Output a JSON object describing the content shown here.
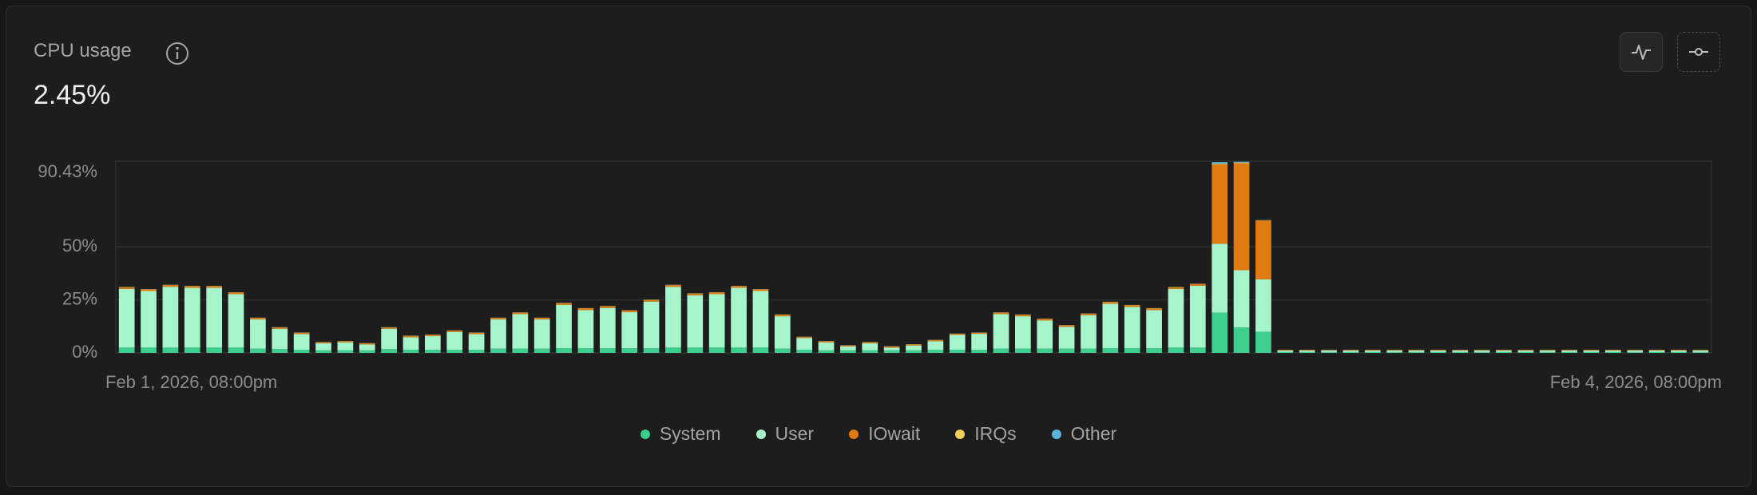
{
  "header": {
    "title": "CPU usage",
    "value": "2.45%"
  },
  "chart_data": {
    "type": "stacked_bar",
    "categories": [
      "Feb 1, 2026, 08:00pm",
      null,
      null,
      null,
      null,
      null,
      null,
      null,
      null,
      null,
      null,
      null,
      null,
      null,
      null,
      null,
      null,
      null,
      null,
      null,
      null,
      null,
      null,
      null,
      null,
      null,
      null,
      null,
      null,
      null,
      null,
      null,
      null,
      null,
      null,
      null,
      null,
      null,
      null,
      null,
      null,
      null,
      null,
      null,
      null,
      null,
      null,
      null,
      null,
      null,
      null,
      null,
      null,
      null,
      null,
      null,
      null,
      null,
      null,
      null,
      null,
      null,
      null,
      null,
      null,
      null,
      null,
      null,
      null,
      null,
      null,
      null,
      "Feb 4, 2026, 08:00pm"
    ],
    "series": [
      {
        "name": "System",
        "color": "#3ecf8e",
        "values": [
          2.5,
          2.5,
          2.5,
          2.5,
          2.5,
          2.5,
          2,
          1.8,
          1.5,
          1.2,
          1.2,
          1.2,
          1.8,
          1.5,
          1.5,
          1.5,
          1.5,
          2,
          2,
          2,
          2.2,
          2.2,
          2.2,
          2.2,
          2.2,
          2.5,
          2.5,
          2.5,
          2.5,
          2.5,
          2,
          1.5,
          1.2,
          1.2,
          1.2,
          1.2,
          1.2,
          1.5,
          1.5,
          1.5,
          2,
          2,
          2,
          2,
          2,
          2.2,
          2.2,
          2.2,
          2.5,
          2.5,
          19,
          12,
          10,
          0.4,
          0.4,
          0.4,
          0.4,
          0.4,
          0.4,
          0.4,
          0.4,
          0.4,
          0.4,
          0.4,
          0.4,
          0.4,
          0.4,
          0.4,
          0.4,
          0.4,
          0.4,
          0.4,
          0.4
        ]
      },
      {
        "name": "User",
        "color": "#a6f5ca",
        "values": [
          27.7,
          26.7,
          28.7,
          28.2,
          28.2,
          25.2,
          13.8,
          9.6,
          7.4,
          3.3,
          3.8,
          2.8,
          9.6,
          5.9,
          6.4,
          8.4,
          7.4,
          13.8,
          16.3,
          13.8,
          20.5,
          18,
          19,
          17,
          22,
          28.7,
          24.7,
          25.2,
          28.2,
          26.7,
          15.3,
          5.5,
          3.8,
          1.8,
          3.3,
          1.3,
          2.3,
          4,
          7,
          7.5,
          16.3,
          15.3,
          13.3,
          10.3,
          15.8,
          21,
          19.5,
          18,
          27.7,
          29.2,
          32.5,
          27,
          24.7,
          0.7,
          0.7,
          0.7,
          0.7,
          0.7,
          0.7,
          0.7,
          0.7,
          0.7,
          0.7,
          0.7,
          0.7,
          0.7,
          0.7,
          0.7,
          0.7,
          0.7,
          0.7,
          0.7,
          0.7
        ]
      },
      {
        "name": "IOwait",
        "color": "#e07b12",
        "values": [
          0.8,
          0.8,
          0.8,
          0.8,
          0.8,
          0.8,
          0.7,
          0.6,
          0.6,
          0.5,
          0.5,
          0.5,
          0.6,
          0.6,
          0.6,
          0.6,
          0.6,
          0.7,
          0.7,
          0.7,
          0.8,
          0.8,
          0.8,
          0.8,
          0.8,
          0.8,
          0.8,
          0.8,
          0.8,
          0.8,
          0.7,
          0.5,
          0.5,
          0.5,
          0.5,
          0.5,
          0.5,
          0.5,
          0.5,
          0.5,
          0.7,
          0.7,
          0.7,
          0.7,
          0.7,
          0.8,
          0.8,
          0.8,
          0.8,
          0.8,
          37.5,
          50.5,
          27.8,
          0.3,
          0.3,
          0.3,
          0.3,
          0.3,
          0.3,
          0.3,
          0.3,
          0.3,
          0.3,
          0.3,
          0.3,
          0.3,
          0.3,
          0.3,
          0.3,
          0.3,
          0.3,
          0.3,
          0.3
        ]
      },
      {
        "name": "IRQs",
        "color": "#f5cf5b",
        "values": [
          0.1,
          0.1,
          0.1,
          0.1,
          0.1,
          0.1,
          0.1,
          0.1,
          0.1,
          0.1,
          0.1,
          0.1,
          0.1,
          0.1,
          0.1,
          0.1,
          0.1,
          0.1,
          0.1,
          0.1,
          0.1,
          0.1,
          0.1,
          0.1,
          0.1,
          0.1,
          0.1,
          0.1,
          0.1,
          0.1,
          0.1,
          0.1,
          0.1,
          0.1,
          0.1,
          0.1,
          0.1,
          0.1,
          0.1,
          0.1,
          0.1,
          0.1,
          0.1,
          0.1,
          0.1,
          0.1,
          0.1,
          0.1,
          0.1,
          0.1,
          0.3,
          0.3,
          0.1,
          0.05,
          0.05,
          0.05,
          0.05,
          0.05,
          0.05,
          0.05,
          0.05,
          0.05,
          0.05,
          0.05,
          0.05,
          0.05,
          0.05,
          0.05,
          0.05,
          0.05,
          0.05,
          0.05,
          0.05
        ]
      },
      {
        "name": "Other",
        "color": "#5ab4e0",
        "values": [
          0.05,
          0.05,
          0.05,
          0.05,
          0.05,
          0.05,
          0.05,
          0.05,
          0.05,
          0.05,
          0.05,
          0.05,
          0.05,
          0.05,
          0.05,
          0.05,
          0.05,
          0.05,
          0.05,
          0.05,
          0.05,
          0.05,
          0.05,
          0.05,
          0.05,
          0.05,
          0.05,
          0.05,
          0.05,
          0.05,
          0.05,
          0.05,
          0.05,
          0.05,
          0.05,
          0.05,
          0.05,
          0.05,
          0.05,
          0.05,
          0.05,
          0.05,
          0.05,
          0.05,
          0.05,
          0.05,
          0.05,
          0.05,
          0.05,
          0.05,
          0.7,
          0.4,
          0.1,
          0.02,
          0.02,
          0.02,
          0.02,
          0.02,
          0.02,
          0.02,
          0.02,
          0.02,
          0.02,
          0.02,
          0.02,
          0.02,
          0.02,
          0.02,
          0.02,
          0.02,
          0.02,
          0.02,
          0.02
        ]
      }
    ],
    "ylim": [
      0,
      90.43
    ],
    "yticks": [
      {
        "value": 0,
        "label": "0%"
      },
      {
        "value": 25,
        "label": "25%"
      },
      {
        "value": 50,
        "label": "50%"
      },
      {
        "value": 90.43,
        "label": "90.43%"
      }
    ],
    "grid": true,
    "legend": "bottom"
  }
}
